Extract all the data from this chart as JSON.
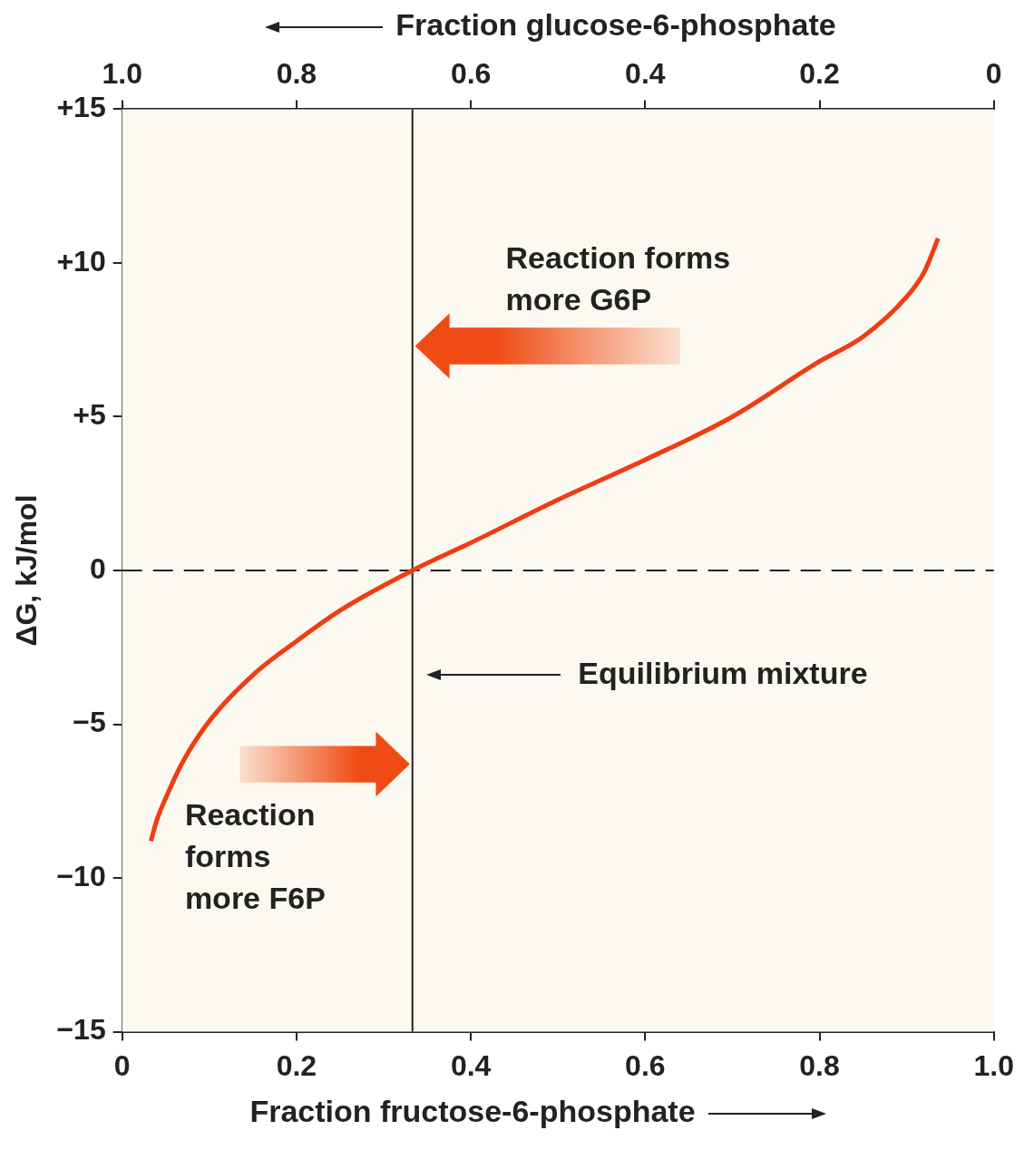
{
  "chart_data": {
    "type": "line",
    "xlabel": "Fraction fructose-6-phosphate",
    "x2label": "Fraction glucose-6-phosphate",
    "ylabel": "ΔG, kJ/mol",
    "xlim": [
      0,
      1
    ],
    "xticks": [
      0,
      0.2,
      0.4,
      0.6,
      0.8,
      {
        "value": 1,
        "label": "1.0"
      }
    ],
    "x2lim": [
      1,
      0
    ],
    "x2ticks": [
      {
        "value": 1,
        "label": "1.0"
      },
      0.8,
      0.6,
      0.4,
      0.2,
      0
    ],
    "ylim": [
      -15,
      15
    ],
    "yticks": [
      {
        "value": -15,
        "label": "−15"
      },
      {
        "value": -10,
        "label": "−10"
      },
      {
        "value": -5,
        "label": "−5"
      },
      0,
      {
        "value": 5,
        "label": "+5"
      },
      {
        "value": 10,
        "label": "+10"
      },
      {
        "value": 15,
        "label": "+15"
      }
    ],
    "x": [
      0.033,
      0.04,
      0.05,
      0.07,
      0.1,
      0.15,
      0.2,
      0.25,
      0.333,
      0.4,
      0.5,
      0.6,
      0.7,
      0.8,
      0.85,
      0.9,
      0.92,
      0.936
    ],
    "series": [
      {
        "color": "#f03c14",
        "values": [
          -8.8,
          -8.1,
          -7.4,
          -6.2,
          -4.9,
          -3.4,
          -2.3,
          -1.3,
          0,
          0.9,
          2.3,
          3.6,
          5.0,
          6.8,
          7.6,
          8.9,
          9.7,
          10.8
        ]
      }
    ],
    "ref_lines": [
      {
        "axis": "x",
        "value": 0.333,
        "label": "Equilibrium mixture",
        "color": "#222222",
        "line_style": "solid"
      },
      {
        "axis": "y",
        "value": 0,
        "color": "#222222",
        "line_style": "dashed"
      }
    ],
    "annotations": [
      "Reaction forms more G6P",
      "Reaction forms more F6P"
    ],
    "grid": false,
    "legend": false,
    "marker": "none",
    "line_style": "solid"
  }
}
